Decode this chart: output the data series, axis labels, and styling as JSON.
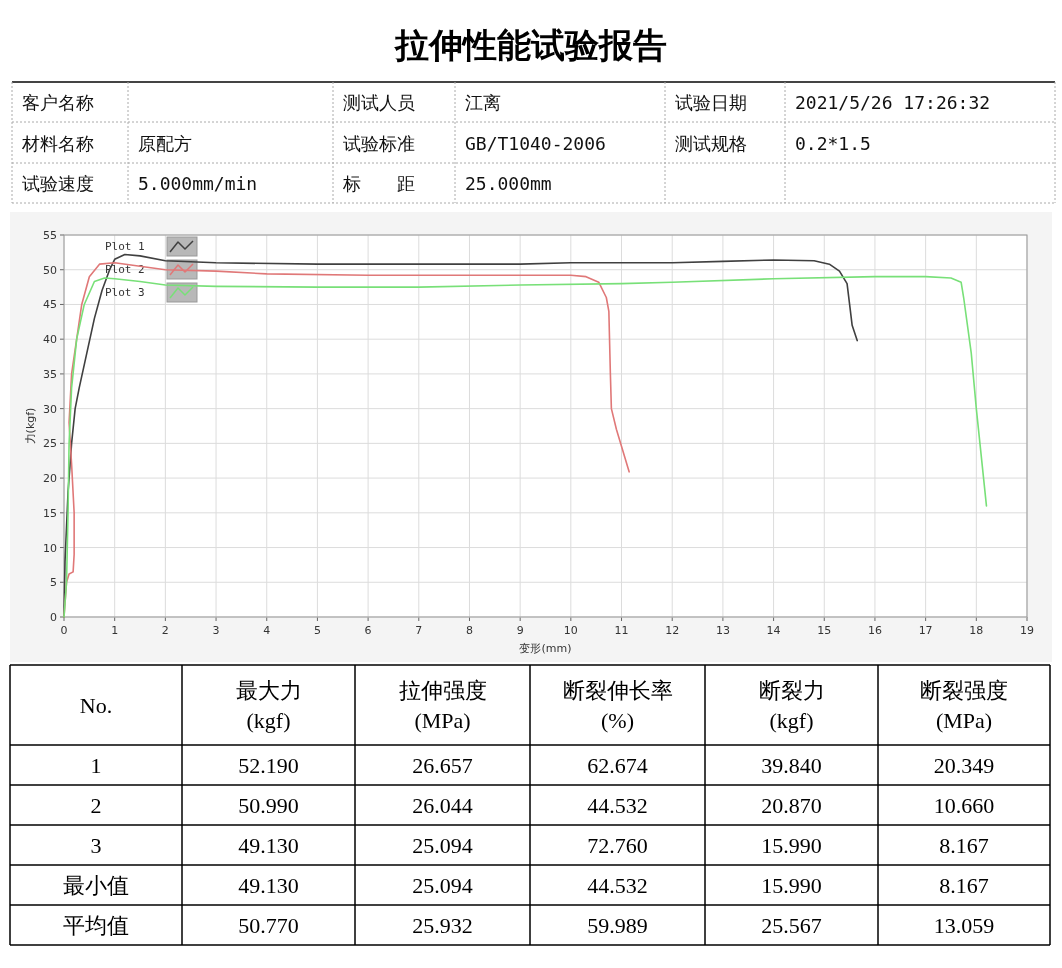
{
  "chart_data": {
    "type": "line",
    "title": "拉伸性能试验报告",
    "xlabel": "变形(mm)",
    "ylabel": "力(kgf)",
    "xlim": [
      0,
      19
    ],
    "xticks": [
      0,
      1,
      2,
      3,
      4,
      5,
      6,
      7,
      8,
      9,
      10,
      11,
      12,
      13,
      14,
      15,
      16,
      17,
      18,
      19
    ],
    "ylim": [
      0,
      55
    ],
    "yticks": [
      0,
      5,
      10,
      15,
      20,
      25,
      30,
      35,
      40,
      45,
      50,
      55
    ],
    "grid": true,
    "legend": "top left",
    "marker": "none",
    "line_style": "solid",
    "series": [
      {
        "name": "Plot 1",
        "color": "#404040",
        "x": [
          0,
          0.02,
          0.08,
          0.15,
          0.22,
          0.3,
          0.45,
          0.6,
          0.75,
          0.9,
          1.0,
          1.2,
          1.5,
          2,
          3,
          5,
          7,
          9,
          10,
          12,
          13,
          14,
          14.8,
          15.1,
          15.3,
          15.45,
          15.5,
          15.55,
          15.65
        ],
        "values": [
          0,
          8,
          18,
          25,
          30,
          33,
          38,
          43,
          47,
          50,
          51.5,
          52.2,
          52,
          51.3,
          51,
          50.8,
          50.8,
          50.8,
          51,
          51,
          51.2,
          51.4,
          51.3,
          50.8,
          49.8,
          48,
          45,
          42,
          39.8
        ]
      },
      {
        "name": "Plot 2",
        "color": "#e07878",
        "x": [
          0,
          0.05,
          0.1,
          0.18,
          0.2,
          0.2,
          0.15,
          0.1,
          0.15,
          0.25,
          0.35,
          0.5,
          0.7,
          1,
          1.5,
          2,
          3,
          4,
          6,
          8,
          10,
          10.3,
          10.55,
          10.7,
          10.75,
          10.78,
          10.8,
          10.9,
          11.15
        ],
        "values": [
          0,
          5,
          6.2,
          6.5,
          9,
          15,
          22,
          28,
          35,
          40,
          45,
          49,
          50.8,
          51,
          50.5,
          50,
          49.8,
          49.4,
          49.2,
          49.2,
          49.2,
          49,
          48.2,
          46,
          44,
          35,
          30,
          27,
          20.9
        ]
      },
      {
        "name": "Plot 3",
        "color": "#78e078",
        "x": [
          0,
          0.05,
          0.08,
          0.1,
          0.15,
          0.25,
          0.4,
          0.6,
          0.8,
          1,
          1.5,
          2,
          3,
          5,
          7,
          9,
          11,
          12,
          14,
          16,
          17,
          17.5,
          17.7,
          17.75,
          17.9,
          18.0,
          18.2
        ],
        "values": [
          0,
          5,
          15,
          25,
          33,
          40,
          45,
          48.3,
          48.8,
          48.7,
          48.3,
          47.8,
          47.6,
          47.5,
          47.5,
          47.8,
          48,
          48.2,
          48.7,
          49,
          49,
          48.8,
          48.2,
          46,
          38,
          30,
          16
        ]
      }
    ],
    "annotations": [
      "客户名称",
      null,
      "测试人员",
      "江离",
      "试验日期",
      "2021/5/26 17:26:32",
      "材料名称",
      "原配方",
      "试验标准",
      "GB/T1040-2006",
      "测试规格",
      "0.2*1.5",
      "试验速度",
      "5.000mm/min",
      "标　　距",
      "25.000mm",
      null,
      null,
      "No.",
      "最大力\n(kgf)",
      "拉伸强度\n(MPa)",
      "断裂伸长率\n(%)",
      "断裂力\n(kgf)",
      "断裂强度\n(MPa)",
      "1",
      "52.190",
      "26.657",
      "62.674",
      "39.840",
      "20.349",
      "2",
      "50.990",
      "26.044",
      "44.532",
      "20.870",
      "10.660",
      "3",
      "49.130",
      "25.094",
      "72.760",
      "15.990",
      "8.167",
      "最小值",
      "49.130",
      "25.094",
      "44.532",
      "15.990",
      "8.167",
      "平均值",
      "50.770",
      "25.932",
      "59.989",
      "25.567",
      "13.059"
    ]
  }
}
